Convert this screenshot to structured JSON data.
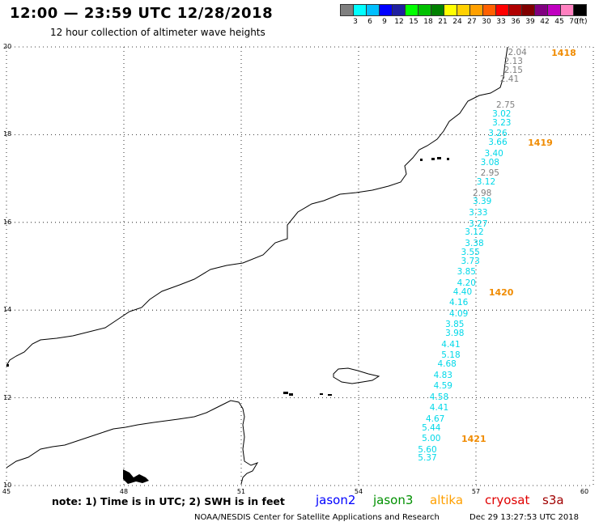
{
  "title": "12:00 — 23:59 UTC 12/28/2018",
  "subtitle": "12 hour collection of altimeter wave heights",
  "colorbar": {
    "colors": [
      "#7f7f7f",
      "#00ffff",
      "#00bfff",
      "#0000ff",
      "#2020a0",
      "#00ff00",
      "#00c000",
      "#008000",
      "#ffff00",
      "#ffd000",
      "#ffa000",
      "#ff6000",
      "#ff0000",
      "#b00000",
      "#800000",
      "#800080",
      "#c000c0",
      "#ff80c0",
      "#000000"
    ],
    "labels": [
      "3",
      "6",
      "9",
      "12",
      "15",
      "18",
      "21",
      "24",
      "27",
      "30",
      "33",
      "36",
      "39",
      "42",
      "45",
      "70"
    ],
    "unit": "(ft)"
  },
  "lat_labels": [
    "20",
    "18",
    "16",
    "14",
    "12",
    "10"
  ],
  "lat_values": [
    20,
    18,
    16,
    14,
    12,
    10
  ],
  "lon_labels": [
    "45",
    "48",
    "51",
    "54",
    "57",
    "60"
  ],
  "lon_values": [
    45,
    48,
    51,
    54,
    57,
    60
  ],
  "wave_heights": [
    {
      "v": "2.04",
      "lat": 19.85,
      "lon": 58.3,
      "c": "gray"
    },
    {
      "v": "2.13",
      "lat": 19.65,
      "lon": 58.2,
      "c": "gray"
    },
    {
      "v": "2.15",
      "lat": 19.45,
      "lon": 58.2,
      "c": "gray"
    },
    {
      "v": "2.41",
      "lat": 19.25,
      "lon": 58.1,
      "c": "gray"
    },
    {
      "v": "2.75",
      "lat": 18.65,
      "lon": 58.0,
      "c": "gray"
    },
    {
      "v": "3.02",
      "lat": 18.45,
      "lon": 57.9,
      "c": "cyan"
    },
    {
      "v": "3.23",
      "lat": 18.25,
      "lon": 57.9,
      "c": "cyan"
    },
    {
      "v": "3.26",
      "lat": 18.0,
      "lon": 57.8,
      "c": "cyan"
    },
    {
      "v": "3.66",
      "lat": 17.8,
      "lon": 57.8,
      "c": "cyan"
    },
    {
      "v": "3.40",
      "lat": 17.55,
      "lon": 57.7,
      "c": "cyan"
    },
    {
      "v": "3.08",
      "lat": 17.35,
      "lon": 57.6,
      "c": "cyan"
    },
    {
      "v": "2.95",
      "lat": 17.1,
      "lon": 57.6,
      "c": "gray"
    },
    {
      "v": "3.12",
      "lat": 16.9,
      "lon": 57.5,
      "c": "cyan"
    },
    {
      "v": "2.98",
      "lat": 16.65,
      "lon": 57.4,
      "c": "gray"
    },
    {
      "v": "3.39",
      "lat": 16.45,
      "lon": 57.4,
      "c": "cyan"
    },
    {
      "v": "3.33",
      "lat": 16.2,
      "lon": 57.3,
      "c": "cyan"
    },
    {
      "v": "3.27",
      "lat": 15.95,
      "lon": 57.3,
      "c": "cyan"
    },
    {
      "v": "3.12",
      "lat": 15.75,
      "lon": 57.2,
      "c": "cyan"
    },
    {
      "v": "3.38",
      "lat": 15.5,
      "lon": 57.2,
      "c": "cyan"
    },
    {
      "v": "3.55",
      "lat": 15.3,
      "lon": 57.1,
      "c": "cyan"
    },
    {
      "v": "3.73",
      "lat": 15.1,
      "lon": 57.1,
      "c": "cyan"
    },
    {
      "v": "3.85",
      "lat": 14.85,
      "lon": 57.0,
      "c": "cyan"
    },
    {
      "v": "4.20",
      "lat": 14.6,
      "lon": 57.0,
      "c": "cyan"
    },
    {
      "v": "4.40",
      "lat": 14.4,
      "lon": 56.9,
      "c": "cyan"
    },
    {
      "v": "4.16",
      "lat": 14.15,
      "lon": 56.8,
      "c": "cyan"
    },
    {
      "v": "4.09",
      "lat": 13.9,
      "lon": 56.8,
      "c": "cyan"
    },
    {
      "v": "3.85",
      "lat": 13.65,
      "lon": 56.7,
      "c": "cyan"
    },
    {
      "v": "3.98",
      "lat": 13.45,
      "lon": 56.7,
      "c": "cyan"
    },
    {
      "v": "4.41",
      "lat": 13.2,
      "lon": 56.6,
      "c": "cyan"
    },
    {
      "v": "5.18",
      "lat": 12.95,
      "lon": 56.6,
      "c": "cyan"
    },
    {
      "v": "4.68",
      "lat": 12.75,
      "lon": 56.5,
      "c": "cyan"
    },
    {
      "v": "4.83",
      "lat": 12.5,
      "lon": 56.4,
      "c": "cyan"
    },
    {
      "v": "4.59",
      "lat": 12.25,
      "lon": 56.4,
      "c": "cyan"
    },
    {
      "v": "4.58",
      "lat": 12.0,
      "lon": 56.3,
      "c": "cyan"
    },
    {
      "v": "4.41",
      "lat": 11.75,
      "lon": 56.3,
      "c": "cyan"
    },
    {
      "v": "4.67",
      "lat": 11.5,
      "lon": 56.2,
      "c": "cyan"
    },
    {
      "v": "5.44",
      "lat": 11.3,
      "lon": 56.1,
      "c": "cyan"
    },
    {
      "v": "5.00",
      "lat": 11.05,
      "lon": 56.1,
      "c": "cyan"
    },
    {
      "v": "5.60",
      "lat": 10.8,
      "lon": 56.0,
      "c": "cyan"
    },
    {
      "v": "5.37",
      "lat": 10.6,
      "lon": 56.0,
      "c": "cyan"
    }
  ],
  "pass_labels": [
    {
      "t": "1418",
      "lat": 19.85,
      "lon": 59.3
    },
    {
      "t": "1419",
      "lat": 17.8,
      "lon": 58.7
    },
    {
      "t": "1420",
      "lat": 14.4,
      "lon": 57.7
    },
    {
      "t": "1421",
      "lat": 11.05,
      "lon": 57.0
    }
  ],
  "note": "note: 1) Time is in UTC; 2) SWH is in feet",
  "satellites": [
    {
      "name": "jason2",
      "color": "#0000ff"
    },
    {
      "name": "jason3",
      "color": "#009000"
    },
    {
      "name": "altika",
      "color": "#ffa000"
    },
    {
      "name": "cryosat",
      "color": "#e00000"
    },
    {
      "name": "s3a",
      "color": "#a00000"
    }
  ],
  "footer_left": "NOAA/NESDIS Center for Satellite Applications and Research",
  "footer_right": "Dec 29 13:27:53 UTC 2018"
}
